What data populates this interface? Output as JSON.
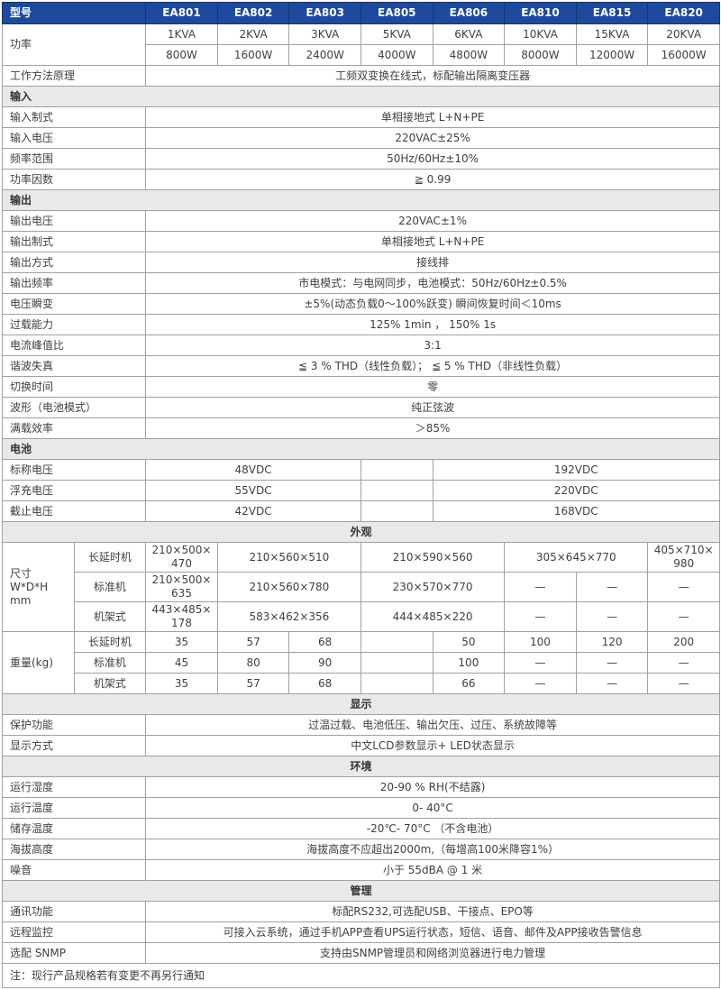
{
  "colors": {
    "header_bg": "#1d4a9d",
    "header_border": "#16366c",
    "section_bg": "#e9e9e9",
    "grid_border": "#a0a0a0",
    "header_text": "#ffffff",
    "body_text": "#3f3f3f"
  },
  "models": {
    "label": "型号",
    "items": [
      "EA801",
      "EA802",
      "EA803",
      "EA805",
      "EA806",
      "EA810",
      "EA815",
      "EA820"
    ]
  },
  "power": {
    "label": "功率",
    "kva": [
      "1KVA",
      "2KVA",
      "3KVA",
      "5KVA",
      "6KVA",
      "10KVA",
      "15KVA",
      "20KVA"
    ],
    "watts": [
      "800W",
      "1600W",
      "2400W",
      "4000W",
      "4800W",
      "8000W",
      "12000W",
      "16000W"
    ]
  },
  "principle": {
    "label": "工作方法原理",
    "value": "工频双变换在线式，标配输出隔离变压器"
  },
  "input": {
    "title": "输入",
    "rows": [
      {
        "label": "输入制式",
        "value": "单相接地式  L+N+PE"
      },
      {
        "label": "输入电压",
        "value": "220VAC±25%"
      },
      {
        "label": "频率范围",
        "value": "50Hz/60Hz±10%"
      },
      {
        "label": "功率因数",
        "value": "≧ 0.99"
      }
    ]
  },
  "output": {
    "title": "输出",
    "rows": [
      {
        "label": "输出电压",
        "value": "220VAC±1%"
      },
      {
        "label": "输出制式",
        "value": "单相接地式  L+N+PE"
      },
      {
        "label": "输出方式",
        "value": "接线排"
      },
      {
        "label": "输出频率",
        "value": "市电模式：与电网同步，电池模式：50Hz/60Hz±0.5%"
      },
      {
        "label": "电压瞬变",
        "value": "±5%(动态负载0～100%跃变) 瞬间恢复时间＜10ms"
      },
      {
        "label": "过载能力",
        "value": "125%  1min ， 150%   1s"
      },
      {
        "label": "电流峰值比",
        "value": "3:1"
      },
      {
        "label": "谐波失真",
        "value": "≦ 3 % THD（线性负载）； ≦ 5 % THD（非线性负载）"
      },
      {
        "label": "切换时间",
        "value": "零"
      },
      {
        "label": "波形（电池模式）",
        "value": "纯正弦波"
      },
      {
        "label": "满载效率",
        "value": "＞85%"
      }
    ]
  },
  "battery": {
    "title": "电池",
    "rows": [
      {
        "label": "标称电压",
        "low": "48VDC",
        "mid": "",
        "high": "192VDC"
      },
      {
        "label": "浮充电压",
        "low": "55VDC",
        "mid": "",
        "high": "220VDC"
      },
      {
        "label": "截止电压",
        "low": "42VDC",
        "mid": "",
        "high": "168VDC"
      }
    ]
  },
  "appearance": {
    "title": "外观",
    "dimension": {
      "label": "尺寸\nW*D*H\nmm",
      "rows": [
        {
          "sub": "长延时机",
          "c1": "210×500×470",
          "c23": "210×560×510",
          "c45": "210×590×560",
          "c67": "305×645×770",
          "c8": "405×710×980"
        },
        {
          "sub": "标准机",
          "c1": "210×500×635",
          "c23": "210×560×780",
          "c45": "230×570×770",
          "c6": "—",
          "c7": "—",
          "c8": "—"
        },
        {
          "sub": "机架式",
          "c1": "443×485×178",
          "c23": "583×462×356",
          "c45": "444×485×220",
          "c6": "—",
          "c7": "—",
          "c8": "—"
        }
      ]
    },
    "weight": {
      "label": "重量(kg)",
      "rows": [
        {
          "sub": "长延时机",
          "v": [
            "35",
            "57",
            "68",
            "",
            "50",
            "100",
            "120",
            "200"
          ]
        },
        {
          "sub": "标准机",
          "v": [
            "45",
            "80",
            "90",
            "",
            "100",
            "—",
            "—",
            "—"
          ]
        },
        {
          "sub": "机架式",
          "v": [
            "35",
            "57",
            "68",
            "",
            "66",
            "—",
            "—",
            "—"
          ]
        }
      ]
    }
  },
  "display": {
    "title": "显示",
    "rows": [
      {
        "label": "保护功能",
        "value": "过温过载、电池低压、输出欠压、过压、系统故障等"
      },
      {
        "label": "显示方式",
        "value": "中文LCD参数显示+ LED状态显示"
      }
    ]
  },
  "environment": {
    "title": "环境",
    "rows": [
      {
        "label": "运行湿度",
        "value": "20-90 % RH(不结露)"
      },
      {
        "label": "运行温度",
        "value": "0- 40°C"
      },
      {
        "label": "储存温度",
        "value": "-20℃- 70°C （不含电池）"
      },
      {
        "label": "海拔高度",
        "value": "海拔高度不应超出2000m,（每增高100米降容1%）"
      },
      {
        "label": "噪音",
        "value": "小于 55dBA @ 1 米"
      }
    ]
  },
  "management": {
    "title": "管理",
    "rows": [
      {
        "label": "通讯功能",
        "value": "标配RS232,可选配USB、干接点、EPO等"
      },
      {
        "label": "远程监控",
        "value": "可接入云系统，通过手机APP查看UPS运行状态，短信、语音、邮件及APP接收告警信息"
      },
      {
        "label": "选配 SNMP",
        "value": "支持由SNMP管理员和网络浏览器进行电力管理"
      }
    ]
  },
  "note": "注：现行产品规格若有变更不再另行通知"
}
